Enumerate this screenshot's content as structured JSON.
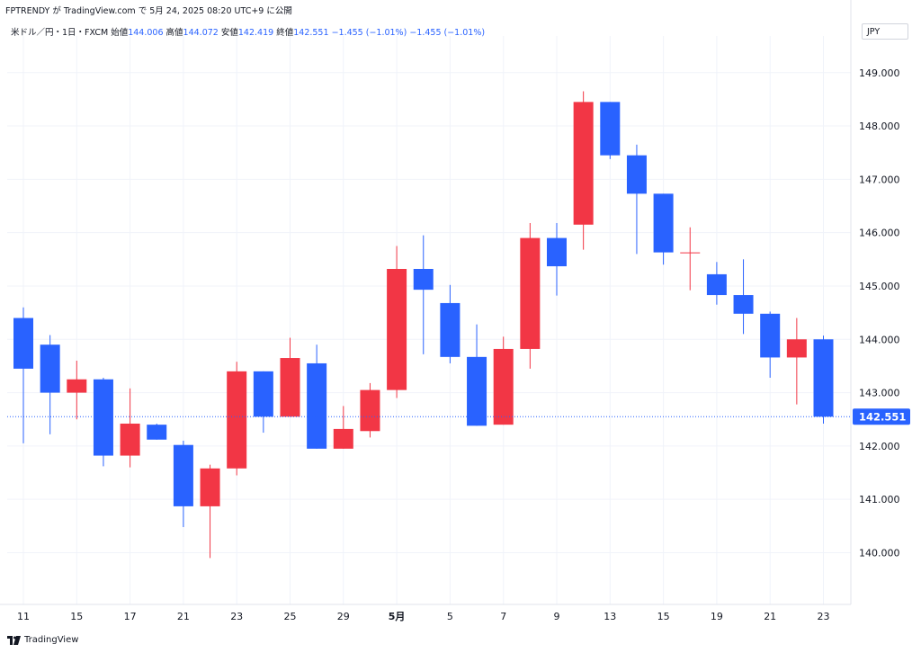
{
  "header": {
    "attribution": "FPTRENDY が TradingView.com で 5月 24, 2025 08:20 UTC+9 に公開"
  },
  "legend": {
    "symbol": "米ドル／円・1日・FXCM",
    "open_label": "始値",
    "open_value": "144.006",
    "high_label": "高値",
    "high_value": "144.072",
    "low_label": "安値",
    "low_value": "142.419",
    "close_label": "終値",
    "close_value": "142.551",
    "change1": "−1.455 (−1.01%)",
    "change2": "−1.455 (−1.01%)"
  },
  "currency_button": "JPY",
  "last_price_label": "142.551",
  "footer": {
    "brand": "TradingView"
  },
  "colors": {
    "up": "#f23645",
    "down": "#2962ff",
    "grid": "#f0f3fa",
    "axis_text": "#131722"
  },
  "chart_data": {
    "type": "candlestick",
    "ylim": [
      139.3,
      149.35
    ],
    "y_ticks": [
      140,
      141,
      142,
      143,
      144,
      145,
      146,
      147,
      148,
      149
    ],
    "y_tick_labels": [
      "140.000",
      "141.000",
      "142.000",
      "143.000",
      "144.000",
      "145.000",
      "146.000",
      "147.000",
      "148.000",
      "149.000"
    ],
    "x_tick_labels": [
      "11",
      "15",
      "17",
      "21",
      "23",
      "25",
      "29",
      "5月",
      "5",
      "7",
      "9",
      "13",
      "15",
      "19",
      "21",
      "23"
    ],
    "x_tick_bar_index": [
      0,
      2,
      4,
      6,
      8,
      10,
      12,
      14,
      16,
      18,
      20,
      22,
      24,
      26,
      28,
      30
    ],
    "last_price": 142.551,
    "candles": [
      {
        "o": 144.4,
        "h": 144.6,
        "l": 142.05,
        "c": 143.45
      },
      {
        "o": 143.9,
        "h": 144.08,
        "l": 142.22,
        "c": 143.0
      },
      {
        "o": 143.0,
        "h": 143.6,
        "l": 142.5,
        "c": 143.25
      },
      {
        "o": 143.25,
        "h": 143.28,
        "l": 141.62,
        "c": 141.82
      },
      {
        "o": 141.82,
        "h": 143.08,
        "l": 141.6,
        "c": 142.42
      },
      {
        "o": 142.4,
        "h": 142.42,
        "l": 142.12,
        "c": 142.12
      },
      {
        "o": 142.02,
        "h": 142.1,
        "l": 140.48,
        "c": 140.87
      },
      {
        "o": 140.87,
        "h": 141.65,
        "l": 139.9,
        "c": 141.58
      },
      {
        "o": 141.58,
        "h": 143.58,
        "l": 141.45,
        "c": 143.4
      },
      {
        "o": 143.4,
        "h": 143.4,
        "l": 142.25,
        "c": 142.55
      },
      {
        "o": 142.55,
        "h": 144.03,
        "l": 142.55,
        "c": 143.65
      },
      {
        "o": 143.55,
        "h": 143.9,
        "l": 141.95,
        "c": 141.95
      },
      {
        "o": 141.95,
        "h": 142.75,
        "l": 141.95,
        "c": 142.32
      },
      {
        "o": 142.28,
        "h": 143.18,
        "l": 142.16,
        "c": 143.05
      },
      {
        "o": 143.05,
        "h": 145.75,
        "l": 142.9,
        "c": 145.32
      },
      {
        "o": 145.32,
        "h": 145.95,
        "l": 143.72,
        "c": 144.93
      },
      {
        "o": 144.68,
        "h": 145.02,
        "l": 143.55,
        "c": 143.67
      },
      {
        "o": 143.67,
        "h": 144.28,
        "l": 142.38,
        "c": 142.38
      },
      {
        "o": 142.4,
        "h": 144.05,
        "l": 142.4,
        "c": 143.82
      },
      {
        "o": 143.82,
        "h": 146.18,
        "l": 143.45,
        "c": 145.9
      },
      {
        "o": 145.9,
        "h": 146.18,
        "l": 144.82,
        "c": 145.37
      },
      {
        "o": 146.15,
        "h": 148.65,
        "l": 145.68,
        "c": 148.45
      },
      {
        "o": 148.45,
        "h": 148.45,
        "l": 147.38,
        "c": 147.45
      },
      {
        "o": 147.45,
        "h": 147.65,
        "l": 145.6,
        "c": 146.73
      },
      {
        "o": 146.73,
        "h": 146.73,
        "l": 145.4,
        "c": 145.63
      },
      {
        "o": 145.63,
        "h": 146.1,
        "l": 144.92,
        "c": 145.63
      },
      {
        "o": 145.22,
        "h": 145.45,
        "l": 144.65,
        "c": 144.83
      },
      {
        "o": 144.83,
        "h": 145.5,
        "l": 144.1,
        "c": 144.48
      },
      {
        "o": 144.48,
        "h": 144.52,
        "l": 143.28,
        "c": 143.66
      },
      {
        "o": 143.66,
        "h": 144.4,
        "l": 142.78,
        "c": 144.0
      },
      {
        "o": 144.0,
        "h": 144.07,
        "l": 142.42,
        "c": 142.55
      }
    ]
  }
}
